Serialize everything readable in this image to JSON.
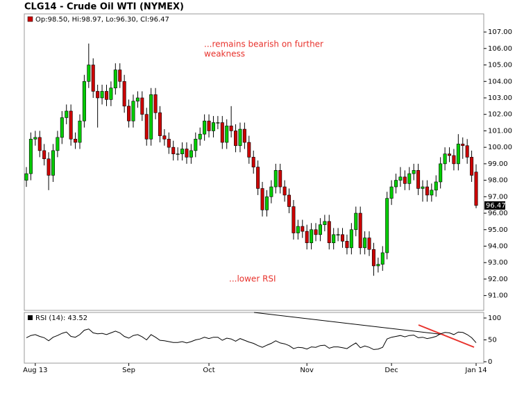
{
  "chart_data": [
    {
      "type": "candlestick",
      "title": "CLG14 - Crude Oil WTI (NYMEX)",
      "legend": "Op:98.50, Hi:98.97, Lo:96.30, Cl:96.47",
      "last_label": "96.47",
      "annotations": [
        "...remains bearish on further",
        "weakness",
        "...lower RSI"
      ],
      "color_up": "#00cc00",
      "color_down": "#cc0000",
      "categories": [
        null,
        null,
        "Aug 13",
        null,
        null,
        null,
        null,
        null,
        null,
        null,
        null,
        null,
        null,
        null,
        null,
        null,
        null,
        null,
        null,
        null,
        null,
        null,
        null,
        "Sep",
        null,
        null,
        null,
        null,
        null,
        null,
        null,
        null,
        null,
        null,
        null,
        null,
        null,
        null,
        null,
        null,
        null,
        "Oct",
        null,
        null,
        null,
        null,
        null,
        null,
        null,
        null,
        null,
        null,
        null,
        null,
        null,
        null,
        null,
        null,
        null,
        null,
        null,
        null,
        null,
        "Nov",
        null,
        null,
        null,
        null,
        null,
        null,
        null,
        null,
        null,
        null,
        null,
        null,
        null,
        null,
        null,
        null,
        null,
        null,
        "Dec",
        null,
        null,
        null,
        null,
        null,
        null,
        null,
        null,
        null,
        null,
        null,
        null,
        null,
        null,
        null,
        null,
        null,
        null,
        "Jan 14"
      ],
      "open": [
        98.0,
        98.4,
        100.5,
        100.6,
        99.8,
        99.3,
        98.3,
        99.8,
        100.6,
        101.8,
        102.2,
        100.5,
        100.3,
        101.6,
        104,
        105,
        103.4,
        103,
        103.4,
        102.9,
        103.6,
        104.7,
        104,
        102.5,
        101.6,
        102.8,
        103,
        102,
        100.5,
        103.2,
        102.1,
        100.7,
        100.5,
        100,
        99.6,
        99.6,
        99.9,
        99.4,
        99.8,
        100.5,
        100.8,
        101.6,
        101,
        101.5,
        101.5,
        100.3,
        101.3,
        101,
        100.1,
        101.1,
        100.3,
        99.4,
        98.8,
        97.5,
        96.2,
        97,
        97.6,
        98.6,
        97.6,
        97.1,
        96.4,
        94.8,
        95.2,
        94.9,
        94.2,
        95,
        94.7,
        95.3,
        95.5,
        94.2,
        94.7,
        94.7,
        94.3,
        93.9,
        95,
        96,
        93.9,
        94.5,
        93.8,
        92.8,
        92.9,
        93.6,
        96.9,
        97.6,
        98,
        98.2,
        97.8,
        98.4,
        98.6,
        97.5,
        97.6,
        97.1,
        97.4,
        97.9,
        99,
        99.6,
        99.5,
        99,
        100.2,
        100.1,
        99.4,
        98.5
      ],
      "high": [
        98.8,
        100.9,
        101.0,
        101.0,
        100.2,
        99.7,
        100.2,
        101.0,
        102.2,
        102.6,
        102.6,
        100.9,
        102.0,
        104.4,
        106.3,
        105.4,
        103.8,
        103.8,
        103.8,
        104.0,
        105.1,
        105.1,
        104.4,
        102.9,
        103.2,
        103.4,
        103.4,
        102.4,
        103.6,
        103.6,
        102.5,
        101.1,
        100.9,
        100.4,
        100.0,
        100.3,
        100.3,
        100.2,
        100.9,
        101.2,
        102.0,
        102.0,
        101.9,
        101.9,
        101.9,
        101.7,
        102.5,
        101.4,
        101.5,
        101.5,
        100.7,
        99.8,
        99.2,
        97.9,
        97.4,
        98.0,
        99.0,
        99.0,
        98.0,
        97.5,
        96.8,
        95.6,
        95.6,
        95.3,
        95.4,
        95.4,
        95.7,
        95.9,
        95.9,
        95.1,
        95.1,
        95.1,
        94.7,
        95.4,
        96.4,
        96.4,
        94.9,
        94.9,
        94.2,
        93.3,
        94.0,
        97.3,
        98.0,
        98.4,
        98.8,
        98.6,
        98.8,
        99.0,
        99.0,
        98.0,
        98.0,
        97.8,
        98.3,
        99.4,
        100.0,
        100.0,
        99.9,
        100.8,
        100.6,
        100.5,
        99.8,
        98.97
      ],
      "low": [
        97.6,
        98.0,
        100.1,
        99.4,
        98.9,
        97.4,
        97.9,
        99.4,
        100.2,
        101.4,
        100.1,
        99.9,
        99.9,
        101.2,
        103.6,
        103.0,
        101.2,
        102.6,
        102.5,
        102.5,
        103.2,
        103.6,
        102.1,
        101.2,
        101.2,
        102.4,
        101.6,
        100.1,
        100.1,
        101.7,
        100.3,
        100.1,
        99.6,
        99.2,
        99.2,
        99.2,
        99.0,
        99.0,
        99.4,
        100.1,
        100.4,
        100.6,
        100.6,
        101.1,
        99.9,
        99.9,
        100.6,
        99.7,
        99.7,
        99.9,
        99.0,
        98.4,
        97.1,
        95.8,
        95.8,
        96.6,
        97.2,
        97.2,
        96.7,
        96.0,
        94.4,
        94.4,
        94.5,
        93.8,
        93.8,
        94.3,
        94.3,
        94.9,
        93.8,
        93.8,
        94.3,
        93.9,
        93.5,
        93.5,
        94.6,
        93.5,
        93.5,
        93.4,
        92.2,
        92.4,
        92.5,
        93.2,
        96.5,
        97.2,
        97.6,
        97.4,
        97.4,
        98.0,
        97.1,
        96.7,
        96.7,
        96.7,
        97.0,
        97.5,
        98.6,
        99.1,
        98.6,
        98.6,
        99.3,
        99.0,
        97.9,
        96.3
      ],
      "close": [
        98.4,
        100.5,
        100.6,
        99.8,
        99.3,
        98.3,
        99.8,
        100.6,
        101.8,
        102.2,
        100.5,
        100.3,
        101.6,
        104,
        105,
        103.4,
        103,
        103.4,
        102.9,
        103.6,
        104.7,
        104,
        102.5,
        101.6,
        102.8,
        103,
        102,
        100.5,
        103.2,
        102.1,
        100.7,
        100.5,
        100,
        99.6,
        99.6,
        99.9,
        99.4,
        99.8,
        100.5,
        100.8,
        101.6,
        101,
        101.5,
        101.5,
        100.3,
        101.3,
        101,
        100.1,
        101.1,
        100.3,
        99.4,
        98.8,
        97.5,
        96.2,
        97,
        97.6,
        98.6,
        97.6,
        97.1,
        96.4,
        94.8,
        95.2,
        94.9,
        94.2,
        95,
        94.7,
        95.3,
        95.5,
        94.2,
        94.7,
        94.7,
        94.3,
        93.9,
        95,
        96,
        93.9,
        94.5,
        93.8,
        92.8,
        92.9,
        93.6,
        96.9,
        97.6,
        98,
        98.2,
        97.8,
        98.4,
        98.6,
        97.5,
        97.6,
        97.1,
        97.4,
        97.9,
        99,
        99.6,
        99.5,
        99,
        100.2,
        100.1,
        99.4,
        98.3,
        96.47
      ],
      "ylim": [
        90.1,
        108.1
      ],
      "yticks": [
        {
          "value": 91,
          "label": "91.00"
        },
        {
          "value": 92,
          "label": "92.00"
        },
        {
          "value": 93,
          "label": "93.00"
        },
        {
          "value": 94,
          "label": "94.00"
        },
        {
          "value": 95,
          "label": "95.00"
        },
        {
          "value": 96,
          "label": "96.00"
        },
        {
          "value": 97,
          "label": "97.00"
        },
        {
          "value": 98,
          "label": "98.00"
        },
        {
          "value": 99,
          "label": "99.00"
        },
        {
          "value": 100,
          "label": "100.00"
        },
        {
          "value": 101,
          "label": "101.00"
        },
        {
          "value": 102,
          "label": "102.00"
        },
        {
          "value": 103,
          "label": "103.00"
        },
        {
          "value": 104,
          "label": "104.00"
        },
        {
          "value": 105,
          "label": "105.00"
        },
        {
          "value": 106,
          "label": "106.00"
        },
        {
          "value": 107,
          "label": "107.00"
        }
      ]
    },
    {
      "type": "line",
      "name": "RSI (14): 43.52",
      "color": "#000000",
      "values": [
        55,
        60,
        62,
        58,
        55,
        48,
        56,
        60,
        65,
        68,
        58,
        56,
        62,
        72,
        75,
        66,
        64,
        65,
        62,
        66,
        70,
        66,
        58,
        54,
        60,
        62,
        57,
        50,
        62,
        56,
        49,
        48,
        46,
        44,
        44,
        46,
        43,
        46,
        50,
        52,
        56,
        53,
        56,
        56,
        49,
        54,
        52,
        47,
        53,
        49,
        45,
        42,
        37,
        33,
        38,
        42,
        48,
        43,
        41,
        37,
        30,
        33,
        32,
        29,
        34,
        33,
        37,
        38,
        31,
        34,
        34,
        32,
        30,
        37,
        43,
        32,
        36,
        33,
        28,
        29,
        33,
        52,
        56,
        58,
        60,
        57,
        60,
        61,
        55,
        56,
        53,
        55,
        58,
        64,
        67,
        66,
        62,
        68,
        67,
        62,
        55,
        43.52
      ],
      "ylim": [
        0,
        100
      ],
      "yticks": [
        0,
        50,
        100
      ]
    }
  ]
}
